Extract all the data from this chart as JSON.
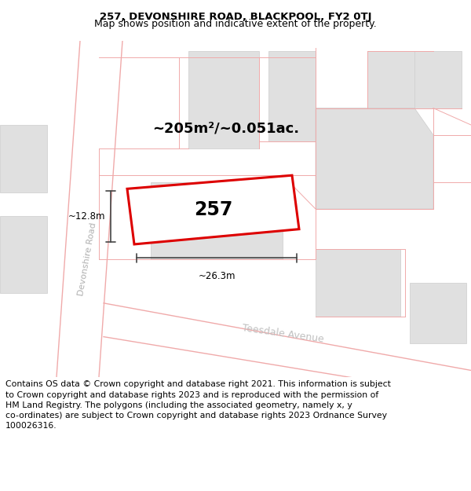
{
  "title_line1": "257, DEVONSHIRE ROAD, BLACKPOOL, FY2 0TJ",
  "title_line2": "Map shows position and indicative extent of the property.",
  "map_bg": "#f9f9f9",
  "building_fill": "#e0e0e0",
  "building_edge": "#cccccc",
  "road_line_color": "#f0aaaa",
  "highlight_edge": "#dd0000",
  "dim_line_color": "#444444",
  "area_text": "~205m²/~0.051ac.",
  "house_number": "257",
  "dim_width": "~26.3m",
  "dim_height": "~12.8m",
  "road_label_devonshire": "Devonshire Road",
  "road_label_teesdale": "Teesdale Avenue",
  "footer_text": "Contains OS data © Crown copyright and database right 2021. This information is subject\nto Crown copyright and database rights 2023 and is reproduced with the permission of\nHM Land Registry. The polygons (including the associated geometry, namely x, y\nco-ordinates) are subject to Crown copyright and database rights 2023 Ordnance Survey\n100026316.",
  "title_fontsize": 9.5,
  "footer_fontsize": 7.8
}
